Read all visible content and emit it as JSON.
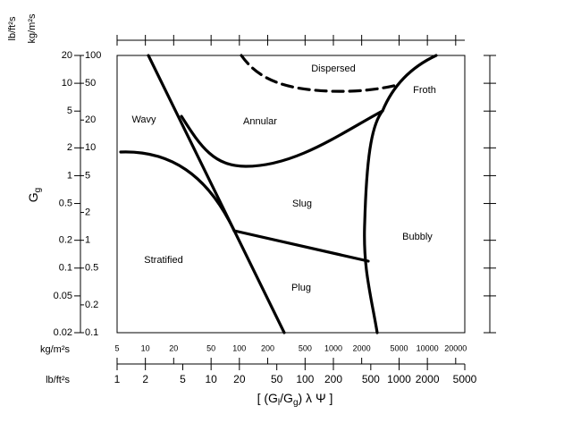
{
  "chart_data": {
    "type": "regime-map",
    "ylabel_parts": [
      "G",
      "g"
    ],
    "y_unit_labels": [
      "lb/ft²s",
      "kg/m²s"
    ],
    "x_unit_labels": [
      "kg/m²s",
      "lb/ft²s"
    ],
    "xlabel_parts": [
      "[ (G",
      "l",
      "/G",
      "g",
      ") λ Ψ ]"
    ],
    "xscale": "log",
    "yscale": "log",
    "xlim": [
      1,
      5000
    ],
    "xticks": [
      1,
      2,
      5,
      10,
      20,
      50,
      100,
      200,
      500,
      1000,
      2000,
      5000
    ],
    "x2lim": [
      5,
      25000
    ],
    "x2ticks": [
      5,
      10,
      20,
      50,
      100,
      200,
      500,
      1000,
      2000,
      5000,
      10000,
      20000
    ],
    "ylim": [
      0.02,
      20
    ],
    "yticks": [
      0.02,
      0.05,
      0.1,
      0.2,
      0.5,
      1,
      2,
      5,
      10,
      20
    ],
    "y2lim": [
      0.1,
      100
    ],
    "y2ticks": [
      0.1,
      0.2,
      0.5,
      1,
      2,
      5,
      10,
      20,
      50,
      100
    ],
    "regions": [
      "Dispersed",
      "Froth",
      "Wavy",
      "Annular",
      "Slug",
      "Bubbly",
      "Stratified",
      "Plug"
    ]
  }
}
